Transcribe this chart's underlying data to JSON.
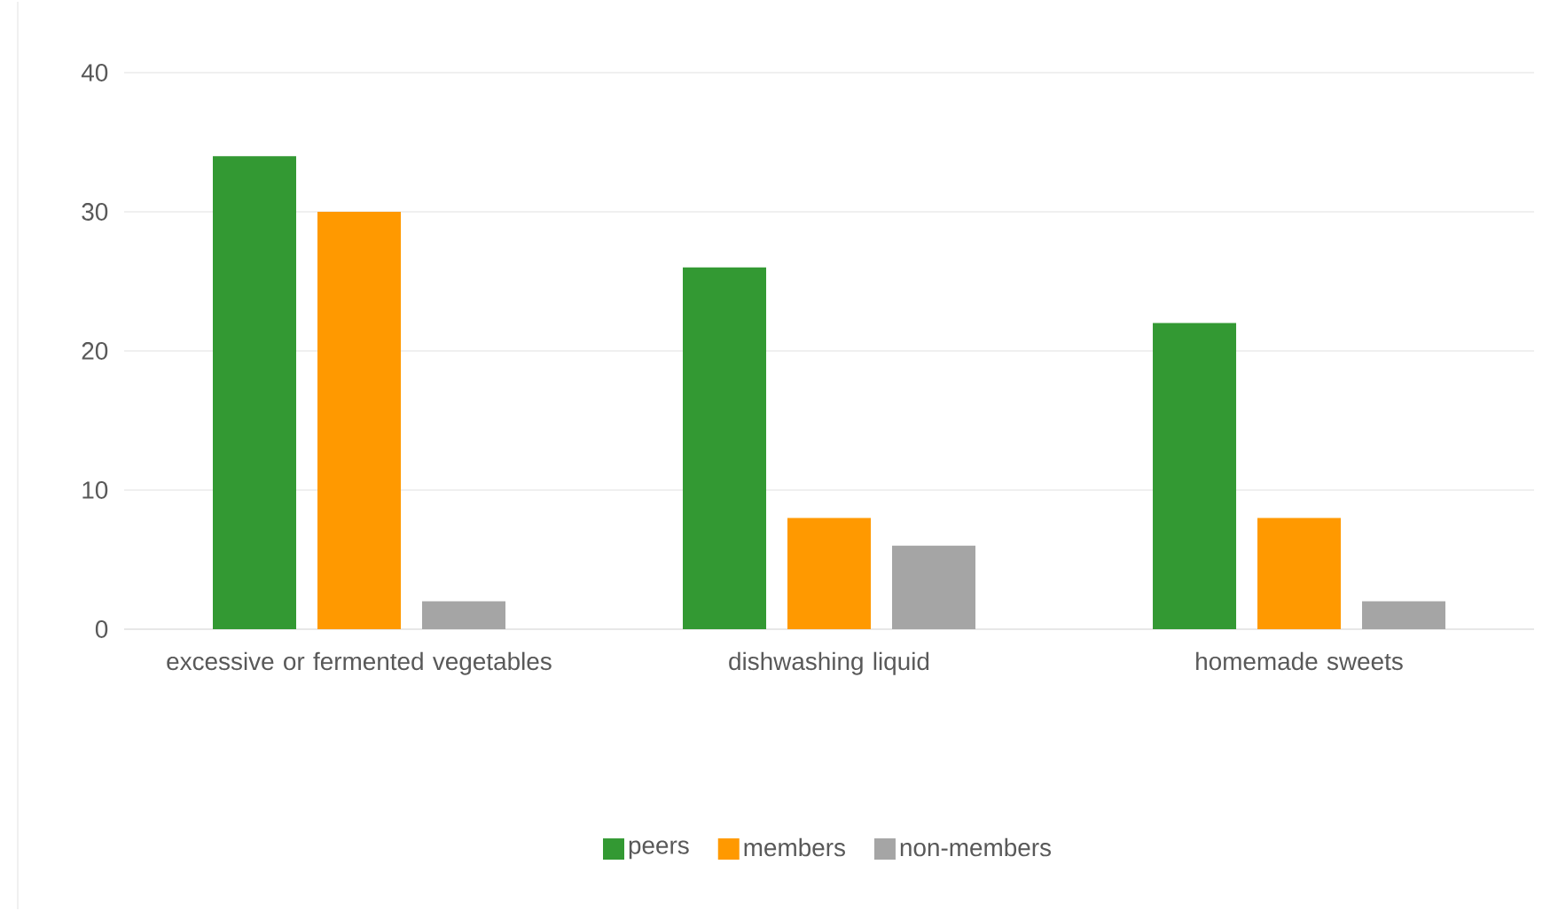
{
  "chart_data": {
    "type": "bar",
    "categories": [
      "excessive or fermented vegetables",
      "dishwashing liquid",
      "homemade sweets"
    ],
    "series": [
      {
        "name": "peers",
        "color": "#339933",
        "values": [
          34,
          26,
          22
        ]
      },
      {
        "name": "members",
        "color": "#ff9900",
        "values": [
          30,
          8,
          8
        ]
      },
      {
        "name": "non-members",
        "color": "#a5a5a5",
        "values": [
          2,
          6,
          2
        ]
      }
    ],
    "ylim": [
      0,
      40
    ],
    "yticks": [
      0,
      10,
      20,
      30,
      40
    ],
    "grid": "y",
    "legend": "bottom"
  }
}
